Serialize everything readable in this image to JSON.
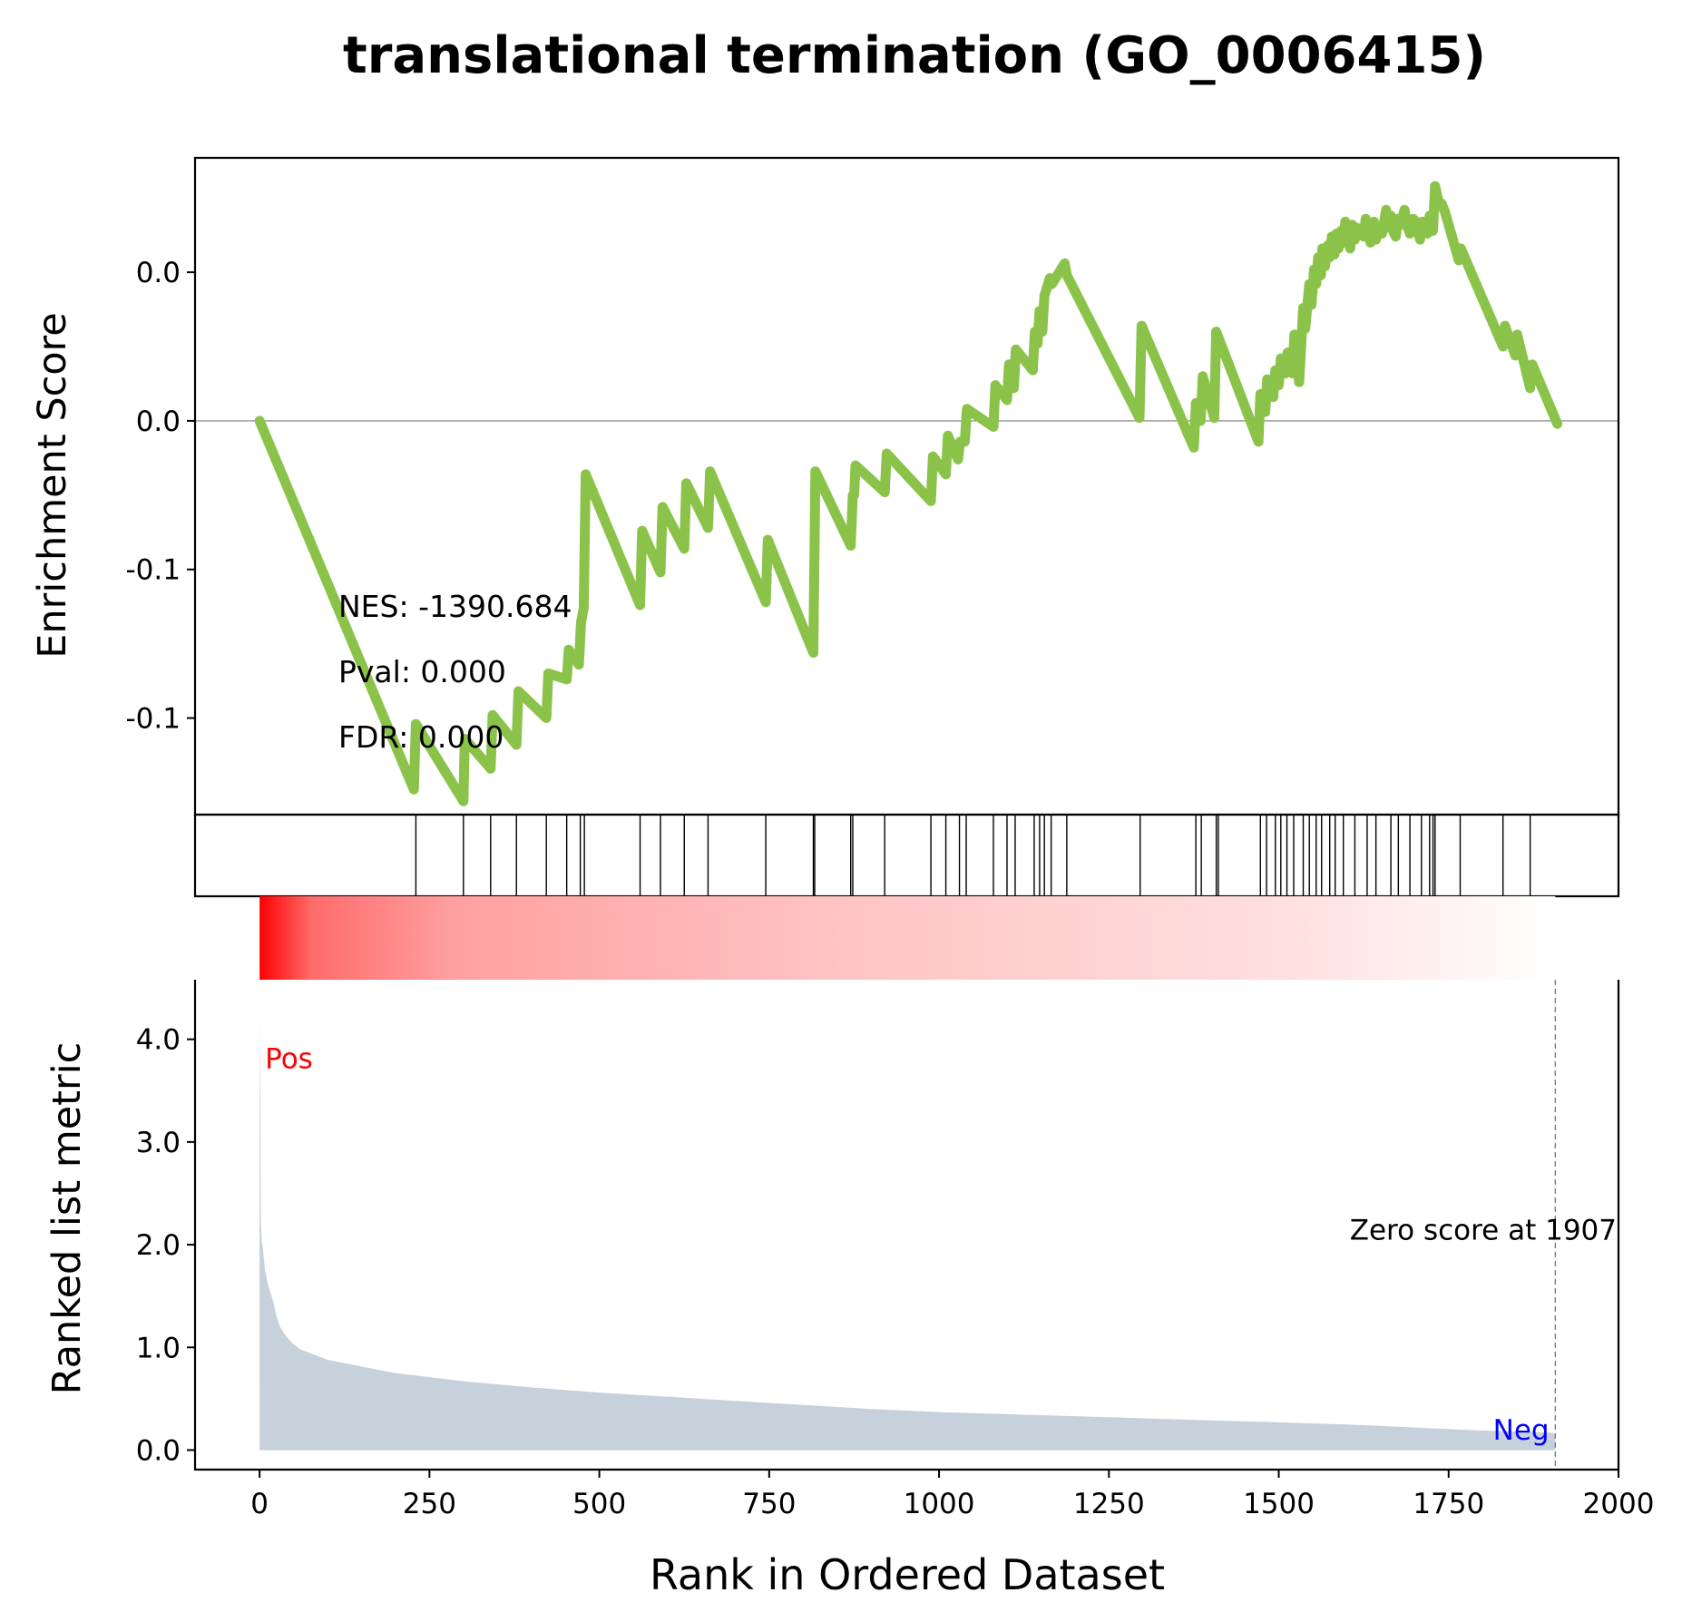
{
  "chart_data": [
    {
      "type": "line",
      "panel": "enrichment-score",
      "title": "translational termination (GO_0006415)",
      "ylabel": "Enrichment Score",
      "xlim": [
        -95,
        2000
      ],
      "ylim": [
        -0.1325,
        0.0885
      ],
      "yticks": [
        {
          "value": 0.05,
          "label": "0.0"
        },
        {
          "value": 0.0,
          "label": "0.0"
        },
        {
          "value": -0.05,
          "label": "-0.1"
        },
        {
          "value": -0.1,
          "label": "-0.1"
        }
      ],
      "line_color": "#8bc34a",
      "zero_line": true,
      "stats": {
        "nes": "NES: -1390.684",
        "pval": "Pval: 0.000",
        "fdr": "FDR: 0.000"
      },
      "es_path": {
        "x": [
          0,
          227,
          230,
          300,
          302,
          340,
          343,
          378,
          381,
          422,
          425,
          452,
          455,
          470,
          473,
          477,
          480,
          560,
          563,
          590,
          593,
          625,
          628,
          660,
          663,
          745,
          748,
          815,
          818,
          870,
          873,
          875,
          877,
          920,
          923,
          988,
          991,
          1010,
          1013,
          1028,
          1031,
          1038,
          1041,
          1080,
          1083,
          1100,
          1103,
          1110,
          1113,
          1138,
          1141,
          1145,
          1148,
          1152,
          1155,
          1163,
          1166,
          1185,
          1188,
          1295,
          1298,
          1375,
          1378,
          1385,
          1388,
          1405,
          1408,
          1470,
          1473,
          1480,
          1483,
          1492,
          1495,
          1500,
          1503,
          1510,
          1513,
          1520,
          1523,
          1530,
          1536,
          1539,
          1545,
          1548,
          1552,
          1555,
          1558,
          1562,
          1564,
          1568,
          1572,
          1575,
          1578,
          1582,
          1585,
          1588,
          1592,
          1595,
          1598,
          1605,
          1608,
          1612,
          1615,
          1625,
          1628,
          1635,
          1640,
          1643,
          1648,
          1652,
          1658,
          1661,
          1665,
          1668,
          1672,
          1676,
          1680,
          1685,
          1690,
          1693,
          1698,
          1702,
          1708,
          1711,
          1715,
          1719,
          1722,
          1727,
          1730,
          1735,
          1740,
          1745,
          1765,
          1768,
          1830,
          1833,
          1848,
          1851,
          1870,
          1873,
          1910
        ],
        "y": [
          0.0,
          -0.124,
          -0.102,
          -0.128,
          -0.107,
          -0.117,
          -0.099,
          -0.109,
          -0.091,
          -0.1,
          -0.085,
          -0.087,
          -0.077,
          -0.082,
          -0.068,
          -0.063,
          -0.018,
          -0.062,
          -0.037,
          -0.051,
          -0.029,
          -0.043,
          -0.021,
          -0.036,
          -0.017,
          -0.061,
          -0.04,
          -0.078,
          -0.017,
          -0.042,
          -0.025,
          -0.025,
          -0.015,
          -0.024,
          -0.011,
          -0.027,
          -0.012,
          -0.018,
          -0.005,
          -0.013,
          -0.007,
          -0.007,
          0.004,
          -0.002,
          0.012,
          0.007,
          0.019,
          0.011,
          0.024,
          0.017,
          0.03,
          0.026,
          0.037,
          0.03,
          0.042,
          0.048,
          0.046,
          0.053,
          0.049,
          0.001,
          0.032,
          -0.009,
          0.006,
          0.0,
          0.015,
          0.001,
          0.03,
          -0.007,
          0.009,
          0.003,
          0.014,
          0.008,
          0.017,
          0.012,
          0.021,
          0.016,
          0.023,
          0.016,
          0.029,
          0.013,
          0.038,
          0.031,
          0.046,
          0.039,
          0.051,
          0.046,
          0.055,
          0.049,
          0.058,
          0.052,
          0.059,
          0.055,
          0.062,
          0.056,
          0.063,
          0.058,
          0.064,
          0.06,
          0.067,
          0.058,
          0.066,
          0.061,
          0.065,
          0.062,
          0.068,
          0.06,
          0.067,
          0.061,
          0.065,
          0.063,
          0.071,
          0.065,
          0.069,
          0.064,
          0.062,
          0.068,
          0.066,
          0.071,
          0.065,
          0.063,
          0.068,
          0.067,
          0.061,
          0.067,
          0.064,
          0.063,
          0.069,
          0.064,
          0.079,
          0.074,
          0.073,
          0.07,
          0.054,
          0.058,
          0.025,
          0.032,
          0.022,
          0.029,
          0.011,
          0.019,
          -0.001
        ]
      }
    },
    {
      "type": "table",
      "panel": "hit-ticks",
      "positions": [
        230,
        300,
        340,
        378,
        422,
        452,
        472,
        478,
        560,
        590,
        625,
        660,
        745,
        815,
        817,
        870,
        873,
        920,
        988,
        1010,
        1030,
        1040,
        1080,
        1100,
        1112,
        1140,
        1148,
        1155,
        1165,
        1188,
        1296,
        1378,
        1386,
        1408,
        1411,
        1473,
        1482,
        1495,
        1503,
        1512,
        1522,
        1536,
        1545,
        1555,
        1563,
        1575,
        1583,
        1595,
        1612,
        1630,
        1643,
        1665,
        1676,
        1693,
        1710,
        1722,
        1727,
        1730,
        1767,
        1830,
        1870
      ]
    },
    {
      "type": "heatmap",
      "panel": "rank-colorbar",
      "x_range": [
        0,
        1907
      ],
      "from_color": "#ff0000",
      "to_color": "#ffffff"
    },
    {
      "type": "area",
      "panel": "ranked-list-metric",
      "ylabel": "Ranked list metric",
      "xlabel": "Rank in Ordered Dataset",
      "xlim": [
        -95,
        2000
      ],
      "ylim": [
        -0.19,
        4.58
      ],
      "xticks": [
        0,
        250,
        500,
        750,
        1000,
        1250,
        1500,
        1750,
        2000
      ],
      "yticks": [
        {
          "value": 0.0,
          "label": "0.0"
        },
        {
          "value": 1.0,
          "label": "1.0"
        },
        {
          "value": 2.0,
          "label": "2.0"
        },
        {
          "value": 3.0,
          "label": "3.0"
        },
        {
          "value": 4.0,
          "label": "4.0"
        }
      ],
      "fill_color": "#c6d1db",
      "x": [
        0,
        1,
        2,
        3,
        5,
        8,
        12,
        15,
        20,
        25,
        30,
        40,
        50,
        60,
        80,
        100,
        130,
        160,
        200,
        250,
        300,
        400,
        500,
        600,
        700,
        800,
        900,
        1000,
        1100,
        1200,
        1300,
        1400,
        1500,
        1600,
        1700,
        1800,
        1900,
        1907
      ],
      "values": [
        4.2,
        3.4,
        2.2,
        2.05,
        1.95,
        1.75,
        1.62,
        1.55,
        1.45,
        1.3,
        1.2,
        1.1,
        1.03,
        0.98,
        0.93,
        0.88,
        0.84,
        0.8,
        0.75,
        0.71,
        0.67,
        0.61,
        0.56,
        0.52,
        0.48,
        0.44,
        0.4,
        0.37,
        0.35,
        0.33,
        0.31,
        0.29,
        0.27,
        0.25,
        0.22,
        0.19,
        0.17,
        0.16
      ],
      "pos_label": "Pos",
      "neg_label": "Neg",
      "pos_color": "#ff0000",
      "neg_color": "#0000ff",
      "zero_score_label": "Zero score at 1907",
      "zero_score_x": 1907
    }
  ]
}
